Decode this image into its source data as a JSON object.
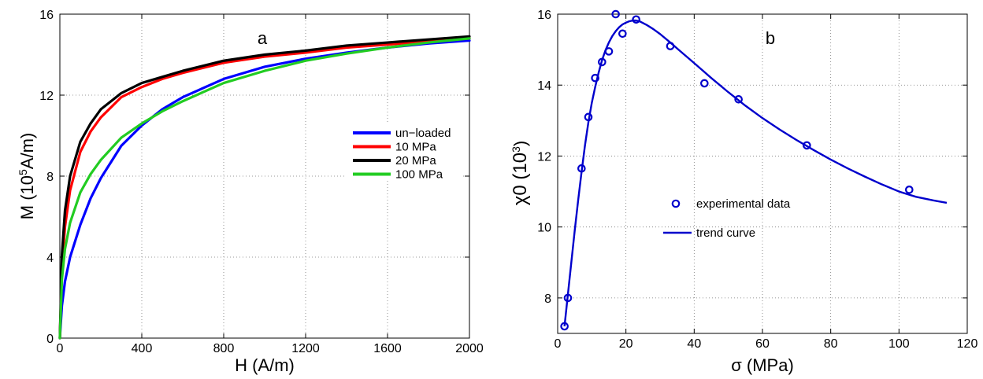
{
  "chart_data": [
    {
      "type": "line",
      "panel_label": "a",
      "xlabel": "H (A/m)",
      "ylabel": {
        "main": "M (10",
        "sup": "5",
        "rest": "A/m)"
      },
      "xlim": [
        0,
        2000
      ],
      "ylim": [
        0,
        16
      ],
      "xticks": [
        0,
        400,
        800,
        1200,
        1600,
        2000
      ],
      "yticks": [
        0,
        4,
        8,
        12,
        16
      ],
      "grid": true,
      "legend_position": "right",
      "series": [
        {
          "name": "un−loaded",
          "color": "#0000ff",
          "x": [
            0,
            10,
            25,
            50,
            100,
            150,
            200,
            250,
            300,
            400,
            500,
            600,
            800,
            1000,
            1200,
            1400,
            1600,
            1800,
            2000
          ],
          "y": [
            0,
            1.6,
            2.8,
            4.0,
            5.6,
            6.9,
            7.9,
            8.7,
            9.5,
            10.5,
            11.3,
            11.9,
            12.8,
            13.4,
            13.8,
            14.1,
            14.35,
            14.55,
            14.7
          ]
        },
        {
          "name": "10 MPa",
          "color": "#ff0000",
          "x": [
            0,
            10,
            25,
            50,
            100,
            150,
            200,
            300,
            400,
            500,
            600,
            800,
            1000,
            1200,
            1400,
            1600,
            1800,
            2000
          ],
          "y": [
            0,
            3.5,
            5.5,
            7.3,
            9.2,
            10.2,
            10.9,
            11.9,
            12.4,
            12.8,
            13.1,
            13.6,
            13.9,
            14.1,
            14.35,
            14.5,
            14.65,
            14.8
          ]
        },
        {
          "name": "20 MPa",
          "color": "#000000",
          "x": [
            0,
            10,
            25,
            50,
            100,
            150,
            200,
            300,
            400,
            500,
            600,
            800,
            1000,
            1200,
            1400,
            1600,
            1800,
            2000
          ],
          "y": [
            0,
            4.1,
            6.3,
            8.0,
            9.7,
            10.6,
            11.3,
            12.1,
            12.6,
            12.9,
            13.2,
            13.7,
            14.0,
            14.2,
            14.45,
            14.6,
            14.75,
            14.9
          ]
        },
        {
          "name": "100 MPa",
          "color": "#22cc22",
          "x": [
            0,
            10,
            25,
            50,
            100,
            150,
            200,
            300,
            400,
            500,
            600,
            800,
            1000,
            1200,
            1400,
            1600,
            1800,
            2000
          ],
          "y": [
            0,
            2.9,
            4.4,
            5.7,
            7.2,
            8.1,
            8.8,
            9.9,
            10.6,
            11.2,
            11.7,
            12.6,
            13.2,
            13.7,
            14.05,
            14.35,
            14.6,
            14.8
          ]
        }
      ]
    },
    {
      "type": "scatter",
      "panel_label": "b",
      "xlabel": "σ (MPa)",
      "ylabel": {
        "main": "χ0  (10",
        "sup": "3",
        "rest": ")"
      },
      "xlim": [
        0,
        120
      ],
      "ylim": [
        7,
        16
      ],
      "xticks": [
        0,
        20,
        40,
        60,
        80,
        100,
        120
      ],
      "yticks": [
        8,
        10,
        12,
        14,
        16
      ],
      "grid": true,
      "legend_position": "center-left",
      "color": "#0000cc",
      "series": [
        {
          "name": "experimental data",
          "kind": "markers",
          "x": [
            2,
            3,
            7,
            9,
            11,
            13,
            15,
            17,
            19,
            23,
            33,
            43,
            53,
            73,
            103
          ],
          "y": [
            7.2,
            8.0,
            11.65,
            13.1,
            14.2,
            14.65,
            14.95,
            16.0,
            15.45,
            15.85,
            15.1,
            14.05,
            13.6,
            12.3,
            11.05
          ]
        },
        {
          "name": "trend curve",
          "kind": "line",
          "x": [
            2,
            3,
            4,
            5,
            6,
            7,
            8,
            9,
            10,
            11,
            12,
            13,
            14,
            15,
            16,
            17,
            18,
            19,
            20,
            21,
            22,
            23,
            24,
            25,
            26,
            28,
            30,
            33,
            36,
            40,
            45,
            50,
            55,
            60,
            65,
            70,
            75,
            80,
            85,
            90,
            95,
            100,
            105,
            110,
            114
          ],
          "y": [
            7.2,
            8.1,
            9.0,
            9.9,
            10.75,
            11.55,
            12.3,
            12.95,
            13.5,
            13.95,
            14.35,
            14.7,
            14.98,
            15.2,
            15.38,
            15.52,
            15.63,
            15.71,
            15.76,
            15.8,
            15.82,
            15.82,
            15.8,
            15.75,
            15.7,
            15.58,
            15.44,
            15.2,
            14.95,
            14.62,
            14.2,
            13.8,
            13.42,
            13.07,
            12.75,
            12.45,
            12.17,
            11.9,
            11.65,
            11.42,
            11.2,
            11.0,
            10.85,
            10.75,
            10.68
          ]
        }
      ]
    }
  ]
}
